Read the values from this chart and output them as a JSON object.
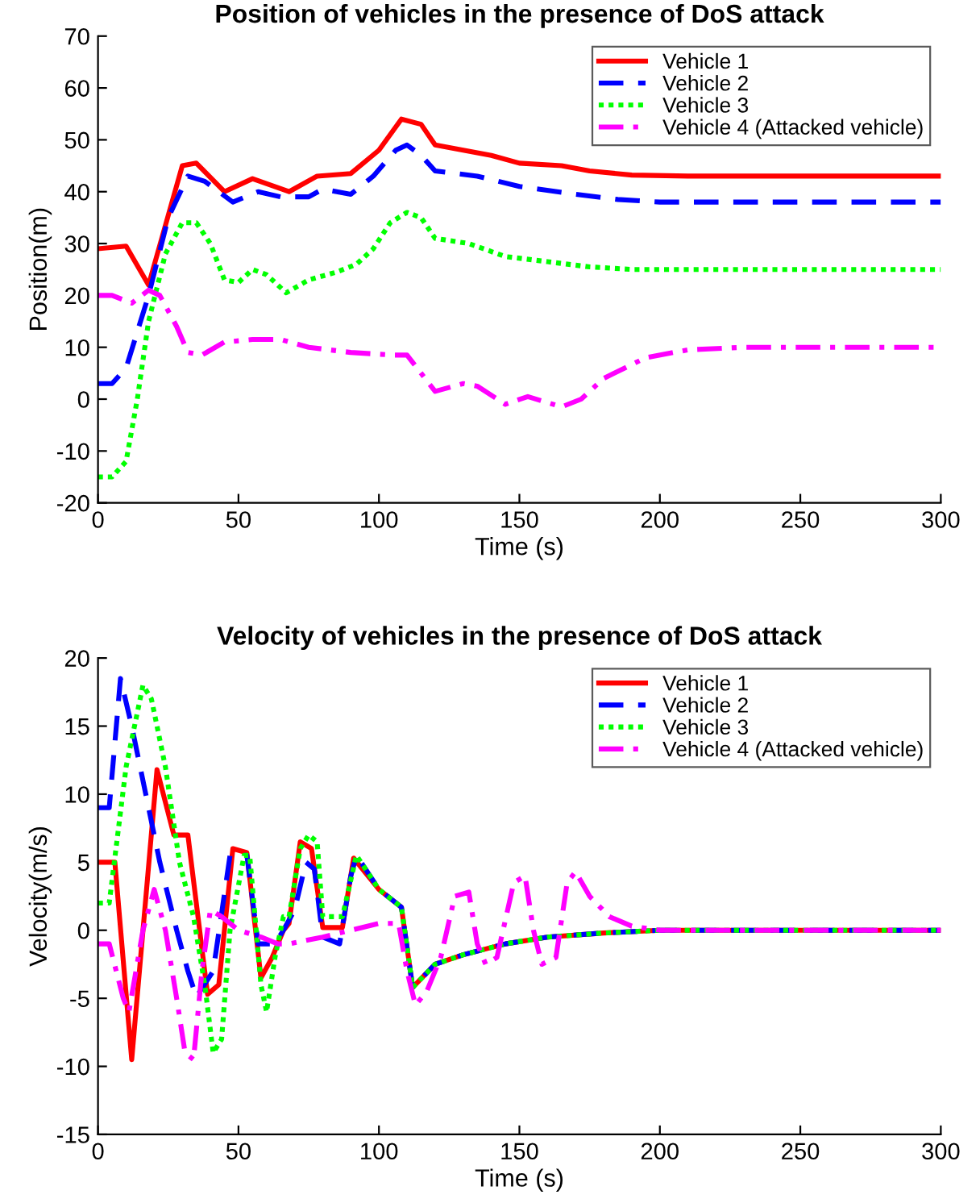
{
  "chart_data": [
    {
      "type": "line",
      "title": "Position of vehicles in the presence of DoS attack",
      "xlabel": "Time (s)",
      "ylabel": "Position(m)",
      "xlim": [
        0,
        300
      ],
      "ylim": [
        -20,
        70
      ],
      "xticks": [
        0,
        50,
        100,
        150,
        200,
        250,
        300
      ],
      "yticks": [
        -20,
        -10,
        0,
        10,
        20,
        30,
        40,
        50,
        60,
        70
      ],
      "grid": false,
      "legend": "top right",
      "marker": "none",
      "series": [
        {
          "name": "Vehicle 1",
          "color": "#ff0000",
          "line_style": "solid",
          "x": [
            0,
            10,
            18,
            30,
            35,
            45,
            55,
            68,
            78,
            90,
            100,
            108,
            115,
            120,
            130,
            140,
            150,
            165,
            175,
            190,
            210,
            300
          ],
          "values": [
            29,
            29.5,
            22,
            45,
            45.5,
            40,
            42.5,
            40,
            43,
            43.5,
            48,
            54,
            53,
            49,
            48,
            47,
            45.5,
            45,
            44,
            43.2,
            43,
            43
          ]
        },
        {
          "name": "Vehicle 2",
          "color": "#0000ff",
          "line_style": "dashed",
          "x": [
            0,
            5,
            10,
            18,
            25,
            32,
            38,
            48,
            57,
            65,
            75,
            80,
            90,
            98,
            106,
            110,
            115,
            120,
            135,
            150,
            170,
            185,
            200,
            300
          ],
          "values": [
            3,
            3,
            6,
            20,
            35,
            43,
            42,
            38,
            40,
            39,
            39,
            40.5,
            39.5,
            43,
            48,
            49,
            47,
            44,
            43,
            41,
            39.5,
            38.5,
            38,
            38
          ]
        },
        {
          "name": "Vehicle 3",
          "color": "#00ff00",
          "line_style": "dotted",
          "x": [
            0,
            5,
            10,
            14,
            18,
            24,
            30,
            35,
            40,
            45,
            50,
            55,
            60,
            67,
            75,
            85,
            92,
            98,
            104,
            110,
            115,
            120,
            132,
            145,
            160,
            175,
            190,
            300
          ],
          "values": [
            -15,
            -15,
            -12,
            0,
            15,
            28,
            34,
            34,
            30,
            23,
            22.5,
            25,
            24,
            20.5,
            23,
            24.5,
            26,
            29,
            34,
            36,
            35,
            31,
            30,
            27.5,
            26.5,
            25.5,
            25,
            25
          ]
        },
        {
          "name": "Vehicle 4 (Attacked vehicle)",
          "color": "#ff00ff",
          "line_style": "dashdot",
          "x": [
            0,
            5,
            12,
            18,
            22,
            28,
            32,
            37,
            45,
            55,
            65,
            75,
            90,
            105,
            110,
            115,
            120,
            130,
            135,
            145,
            153,
            165,
            172,
            180,
            195,
            210,
            230,
            300
          ],
          "values": [
            20,
            20,
            18.5,
            21,
            20,
            14,
            9,
            8.5,
            11,
            11.5,
            11.5,
            10,
            9,
            8.5,
            8.5,
            5,
            1.5,
            3,
            2.5,
            -1,
            0.5,
            -1.5,
            0,
            4,
            8,
            9.5,
            10,
            10
          ]
        }
      ]
    },
    {
      "type": "line",
      "title": "Velocity of vehicles in the presence of DoS attack",
      "xlabel": "Time (s)",
      "ylabel": "Velocity(m/s)",
      "xlim": [
        0,
        300
      ],
      "ylim": [
        -15,
        20
      ],
      "xticks": [
        0,
        50,
        100,
        150,
        200,
        250,
        300
      ],
      "yticks": [
        -15,
        -10,
        -5,
        0,
        5,
        10,
        15,
        20
      ],
      "grid": false,
      "legend": "top right",
      "marker": "none",
      "series": [
        {
          "name": "Vehicle 1",
          "color": "#ff0000",
          "line_style": "solid",
          "x": [
            0,
            6,
            12,
            21,
            27,
            28,
            32,
            39,
            43,
            48,
            53,
            58,
            62,
            66,
            68,
            72,
            76,
            80,
            87,
            91,
            100,
            108,
            112,
            120,
            130,
            145,
            160,
            180,
            200,
            300
          ],
          "values": [
            5,
            5,
            -9.5,
            11.8,
            7,
            7,
            7,
            -4.7,
            -4,
            6,
            5.7,
            -3.5,
            -2,
            0,
            0.5,
            6.5,
            6,
            0.2,
            0.2,
            5.3,
            3,
            1.7,
            -4.2,
            -2.5,
            -1.8,
            -1,
            -0.5,
            -0.2,
            0,
            0
          ]
        },
        {
          "name": "Vehicle 2",
          "color": "#0000ff",
          "line_style": "dashed",
          "x": [
            0,
            4,
            8,
            12,
            17,
            22,
            28,
            32,
            35,
            41,
            47,
            53,
            57,
            63,
            66,
            70,
            74,
            77,
            80,
            86,
            90,
            92,
            100,
            108,
            112,
            120,
            130,
            145,
            160,
            180,
            200,
            300
          ],
          "values": [
            9,
            9,
            18.5,
            15,
            10,
            5,
            0,
            -3,
            -4.9,
            -3,
            5.5,
            5.5,
            -1,
            -1,
            0,
            1.5,
            5,
            4.5,
            -0.5,
            -1,
            4,
            5.5,
            3,
            1.7,
            -4.2,
            -2.5,
            -1.8,
            -1,
            -0.5,
            -0.2,
            0,
            0
          ]
        },
        {
          "name": "Vehicle 3",
          "color": "#00ff00",
          "line_style": "dotted",
          "x": [
            0,
            4,
            10,
            16,
            19,
            24,
            29,
            34,
            38,
            41,
            44,
            47,
            52,
            54,
            58,
            60,
            63,
            66,
            68,
            72,
            75,
            78,
            80,
            87,
            92,
            100,
            108,
            112,
            120,
            130,
            145,
            160,
            180,
            200,
            300
          ],
          "values": [
            2,
            2,
            12,
            18,
            17,
            12,
            5,
            1,
            -4,
            -9,
            -8,
            0,
            5.5,
            5.5,
            -4,
            -6,
            -2,
            1,
            1,
            6,
            7,
            6.5,
            1,
            1,
            5.5,
            3,
            1.7,
            -4.2,
            -2.5,
            -1.8,
            -1,
            -0.5,
            -0.2,
            0,
            0
          ]
        },
        {
          "name": "Vehicle 4 (Attacked vehicle)",
          "color": "#ff00ff",
          "line_style": "dashdot",
          "x": [
            0,
            4,
            9,
            11,
            16,
            20,
            24,
            28,
            31,
            34,
            37,
            40,
            44,
            50,
            58,
            64,
            68,
            80,
            90,
            100,
            107,
            110,
            113,
            117,
            122,
            127,
            132,
            135,
            138,
            142,
            148,
            152,
            155,
            158,
            163,
            167,
            170,
            175,
            182,
            190,
            200,
            300
          ],
          "values": [
            -1,
            -1,
            -5,
            -6,
            0,
            3,
            0,
            -5,
            -9,
            -9.5,
            -3,
            1.5,
            1,
            0,
            -0.5,
            -1,
            -1,
            -0.5,
            0,
            0.5,
            0.5,
            -3,
            -5.5,
            -4.5,
            -2,
            2.5,
            2.8,
            -1,
            -2.5,
            -2,
            3.5,
            4,
            0,
            -2.5,
            -2,
            3.5,
            4.3,
            2.5,
            1,
            0.3,
            0,
            0
          ]
        }
      ]
    }
  ]
}
